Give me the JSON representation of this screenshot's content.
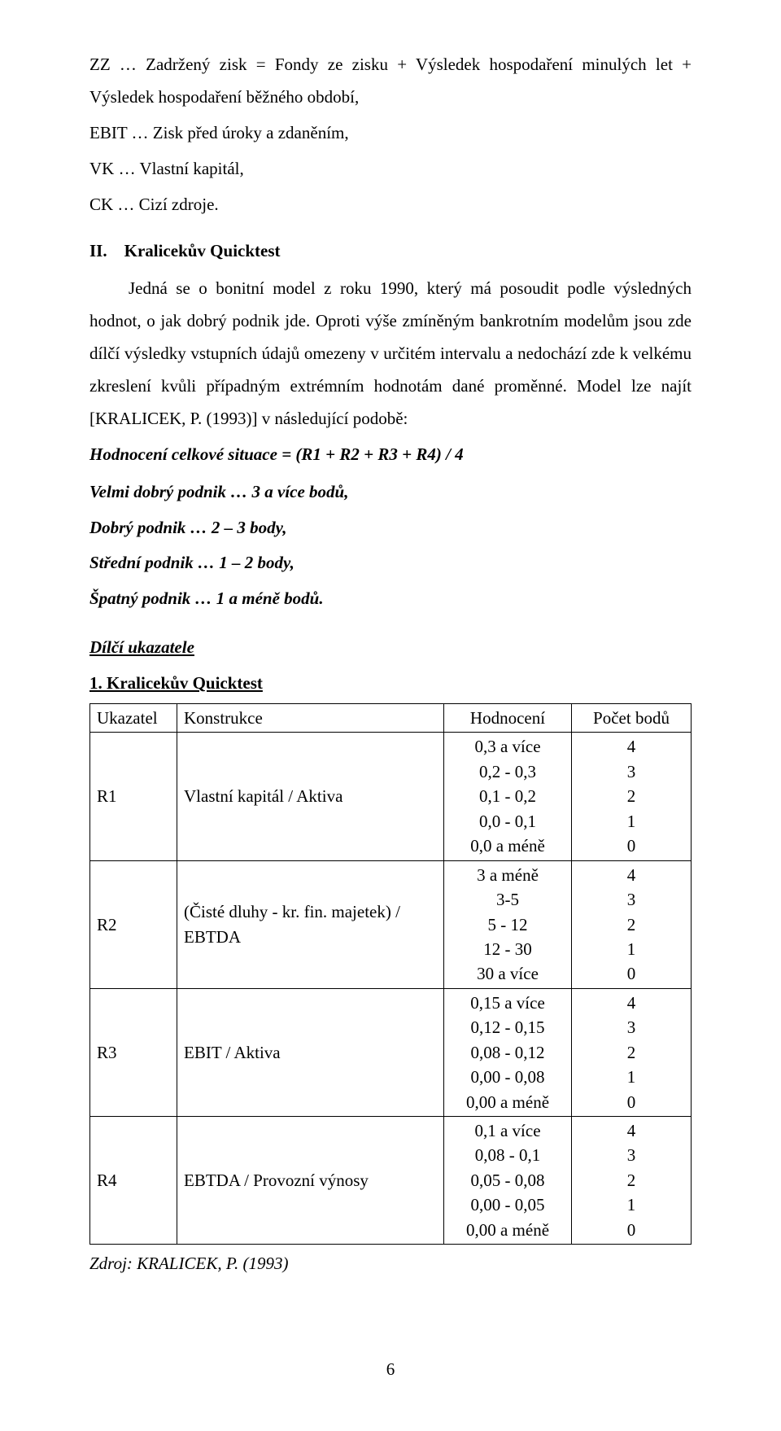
{
  "definitions": {
    "zz": "ZZ … Zadržený zisk = Fondy ze zisku + Výsledek hospodaření minulých let + Výsledek hospodaření běžného období,",
    "ebit": "EBIT … Zisk před úroky a zdaněním,",
    "vk": "VK … Vlastní kapitál,",
    "ck": "CK … Cizí zdroje."
  },
  "section2": {
    "num": "II.",
    "title": "Kralicekův Quicktest",
    "body": "Jedná se o bonitní model z roku 1990, který má posoudit podle výsledných hodnot, o jak dobrý podnik jde. Oproti výše zmíněným bankrotním modelům jsou zde dílčí výsledky vstupních údajů omezeny v určitém intervalu a nedochází zde k velkému zkreslení kvůli případným extrémním hodnotám dané proměnné. Model lze najít [KRALICEK, P. (1993)] v následující podobě:",
    "formula": "Hodnocení celkové situace = (R1 + R2 + R3 + R4) / 4",
    "l1": "Velmi dobrý podnik … 3 a více bodů,",
    "l2": "Dobrý podnik … 2 – 3 body,",
    "l3": "Střední podnik … 1 – 2 body,",
    "l4": "Špatný podnik … 1 a méně bodů."
  },
  "subhead": "Dílčí ukazatele",
  "table": {
    "title": "1. Kralicekův Quicktest",
    "headers": {
      "h1": "Ukazatel",
      "h2": "Konstrukce",
      "h3": "Hodnocení",
      "h4": "Počet bodů"
    },
    "rows": [
      {
        "uk": "R1",
        "kon": "Vlastní kapitál / Aktiva",
        "hod": [
          "0,3 a více",
          "0,2 - 0,3",
          "0,1 - 0,2",
          "0,0 - 0,1",
          "0,0 a méně"
        ],
        "bod": [
          "4",
          "3",
          "2",
          "1",
          "0"
        ]
      },
      {
        "uk": "R2",
        "kon": "(Čisté dluhy - kr. fin. majetek) / EBTDA",
        "hod": [
          "3 a méně",
          "3-5",
          "5 - 12",
          "12 - 30",
          "30 a více"
        ],
        "bod": [
          "4",
          "3",
          "2",
          "1",
          "0"
        ]
      },
      {
        "uk": "R3",
        "kon": "EBIT / Aktiva",
        "hod": [
          "0,15 a více",
          "0,12 - 0,15",
          "0,08 - 0,12",
          "0,00 - 0,08",
          "0,00 a méně"
        ],
        "bod": [
          "4",
          "3",
          "2",
          "1",
          "0"
        ]
      },
      {
        "uk": "R4",
        "kon": "EBTDA / Provozní výnosy",
        "hod": [
          "0,1 a více",
          "0,08 - 0,1",
          "0,05 - 0,08",
          "0,00 - 0,05",
          "0,00 a méně"
        ],
        "bod": [
          "4",
          "3",
          "2",
          "1",
          "0"
        ]
      }
    ],
    "source": "Zdroj: KRALICEK, P. (1993)"
  },
  "pageNum": "6"
}
